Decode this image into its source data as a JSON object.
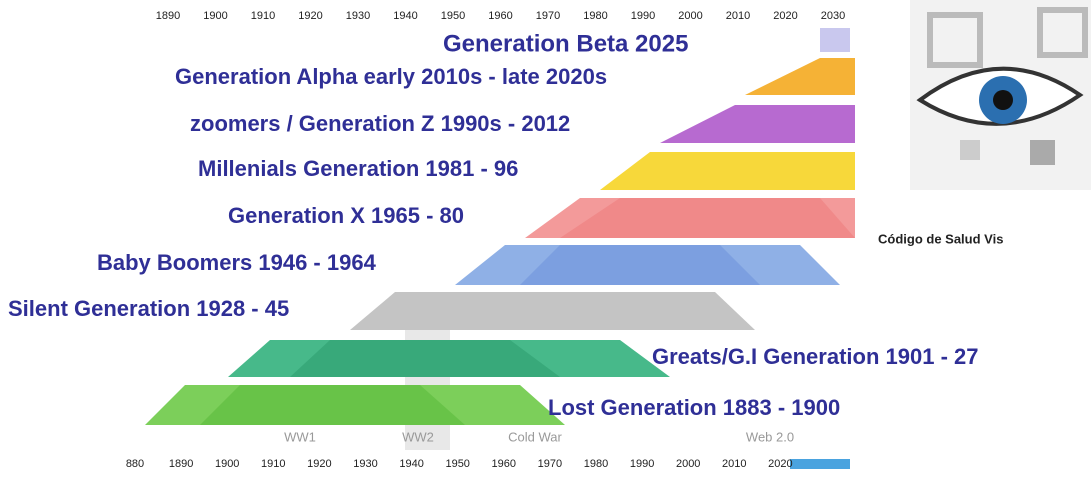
{
  "top_axis": {
    "labels": [
      "1890",
      "1900",
      "1910",
      "1920",
      "1930",
      "1940",
      "1950",
      "1960",
      "1970",
      "1980",
      "1990",
      "2000",
      "2010",
      "2020",
      "2030"
    ]
  },
  "generations": [
    {
      "label": "Generation Beta 2025"
    },
    {
      "label": "Generation Alpha early 2010s - late 2020s"
    },
    {
      "label": "zoomers / Generation Z 1990s - 2012"
    },
    {
      "label": "Millenials Generation 1981 - 96"
    },
    {
      "label": "Generation X 1965 - 80"
    },
    {
      "label": "Baby Boomers 1946 - 1964"
    },
    {
      "label": "Silent Generation 1928 - 45"
    },
    {
      "label": "Greats/G.I Generation 1901 - 27"
    },
    {
      "label": "Lost Generation 1883 - 1900"
    }
  ],
  "eras": [
    "WW1",
    "WW2",
    "Cold War",
    "Web 2.0"
  ],
  "bottom_axis": {
    "labels": [
      "880",
      "1890",
      "1900",
      "1910",
      "1920",
      "1930",
      "1940",
      "1950",
      "1960",
      "1970",
      "1980",
      "1990",
      "2000",
      "2010",
      "2020"
    ]
  },
  "image_caption": "Código de Salud Vis"
}
